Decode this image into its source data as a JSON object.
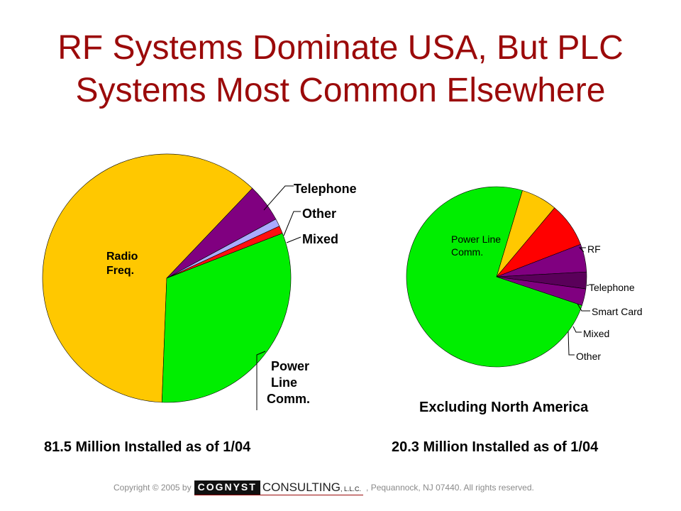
{
  "title": {
    "line1": "RF Systems Dominate USA, But PLC",
    "line2": "Systems Most Common Elsewhere"
  },
  "colors": {
    "title": "#9b0a0a",
    "radio_freq": "#ffc800",
    "power_line": "#00ee00",
    "telephone": "#ff0000",
    "other": "#aaaaff",
    "mixed": "#ff1010",
    "purple": "#800080",
    "dark_purple": "#5a005a"
  },
  "chart_data": [
    {
      "type": "pie",
      "title": "",
      "caption": "81.5 Million Installed as of 1/04",
      "slices": [
        {
          "label": "Radio Freq.",
          "value": 61.5,
          "color": "#ffc800"
        },
        {
          "label": "Telephone",
          "value": 5.0,
          "color": "#800080"
        },
        {
          "label": "Other",
          "value": 1.0,
          "color": "#aaaaff"
        },
        {
          "label": "Mixed",
          "value": 1.0,
          "color": "#ff1010"
        },
        {
          "label": "Power Line Comm.",
          "value": 31.5,
          "color": "#00ee00"
        }
      ]
    },
    {
      "type": "pie",
      "title": "Excluding North America",
      "caption": "20.3 Million Installed as of 1/04",
      "slices": [
        {
          "label": "Power Line Comm.",
          "value": 74.5,
          "color": "#00ee00"
        },
        {
          "label": "RF",
          "value": 6.5,
          "color": "#ffc800"
        },
        {
          "label": "Telephone",
          "value": 8.0,
          "color": "#ff0000"
        },
        {
          "label": "Smart Card",
          "value": 5.0,
          "color": "#800080"
        },
        {
          "label": "Mixed",
          "value": 3.0,
          "color": "#5a005a"
        },
        {
          "label": "Other",
          "value": 3.0,
          "color": "#800080"
        }
      ]
    }
  ],
  "labels": {
    "left": {
      "radio_1": "Radio",
      "radio_2": "Freq.",
      "telephone": "Telephone",
      "other": "Other",
      "mixed": "Mixed",
      "plc_1": "Power",
      "plc_2": "Line",
      "plc_3": "Comm."
    },
    "right": {
      "plc_1": "Power Line",
      "plc_2": "Comm.",
      "rf": "RF",
      "telephone": "Telephone",
      "smart_card": "Smart Card",
      "mixed": "Mixed",
      "other": "Other"
    }
  },
  "footer": {
    "copyright_prefix": "Copyright © 2005 by",
    "logo_dark": "COGNYST",
    "logo_light": "CONSULTING",
    "logo_llc": ", L.L.C.",
    "copyright_suffix": ", Pequannock, NJ 07440.  All rights reserved."
  }
}
